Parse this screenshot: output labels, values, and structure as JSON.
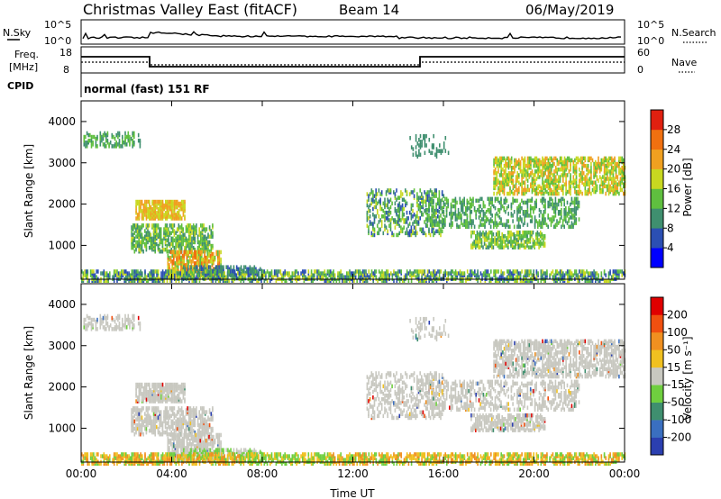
{
  "header": {
    "station": "Christmas Valley East (fitACF)",
    "beam": "Beam 14",
    "date": "06/May/2019"
  },
  "strips": {
    "nsky_label": "N.Sky",
    "nsky_ticks": [
      "10^5",
      "10^0"
    ],
    "nsearch_label": "N.Search",
    "nsearch_ticks": [
      "10^5",
      "10^0"
    ],
    "freq_label_1": "Freq.",
    "freq_label_2": "[MHz]",
    "freq_ticks": [
      "18",
      "8"
    ],
    "nave_label": "Nave",
    "nave_ticks": [
      "60",
      "0"
    ],
    "cpid_label": "CPID",
    "cpid_value": "normal (fast) 151 RF"
  },
  "chart_data": [
    {
      "type": "heatmap",
      "title": "Power",
      "ylabel": "Slant Range [km]",
      "xlabel": "Time UT",
      "x_ticks": [
        "00:00",
        "04:00",
        "08:00",
        "12:00",
        "16:00",
        "20:00",
        "00:00"
      ],
      "xlim_hours": [
        0,
        24
      ],
      "y_ticks": [
        "1000",
        "2000",
        "3000",
        "4000"
      ],
      "ylim": [
        180,
        4500
      ],
      "colorbar_label": "Power [dB]",
      "colorbar_ticks": [
        "4",
        "8",
        "12",
        "16",
        "20",
        "24",
        "28"
      ],
      "colorbar_colors": [
        "#0000ff",
        "#2b4fb3",
        "#3f8f6f",
        "#5fbf3f",
        "#c8d820",
        "#f0a020",
        "#f07010",
        "#e02010"
      ]
    },
    {
      "type": "heatmap",
      "title": "Velocity",
      "ylabel": "Slant Range [km]",
      "xlabel": "Time UT",
      "x_ticks": [
        "00:00",
        "04:00",
        "08:00",
        "12:00",
        "16:00",
        "20:00",
        "00:00"
      ],
      "xlim_hours": [
        0,
        24
      ],
      "y_ticks": [
        "1000",
        "2000",
        "3000",
        "4000"
      ],
      "ylim": [
        180,
        4500
      ],
      "colorbar_label": "Velocity [m s⁻¹]",
      "colorbar_ticks": [
        "200",
        "100",
        "50",
        "15",
        "-15",
        "-50",
        "-100",
        "-200"
      ],
      "colorbar_colors": [
        "#2b3fb0",
        "#3a6fc0",
        "#3f8f6f",
        "#6fcf3f",
        "#c8c8c0",
        "#f0c020",
        "#f09020",
        "#f05010",
        "#e00000"
      ]
    }
  ],
  "colors": {
    "ground": "#c8c8c0"
  }
}
